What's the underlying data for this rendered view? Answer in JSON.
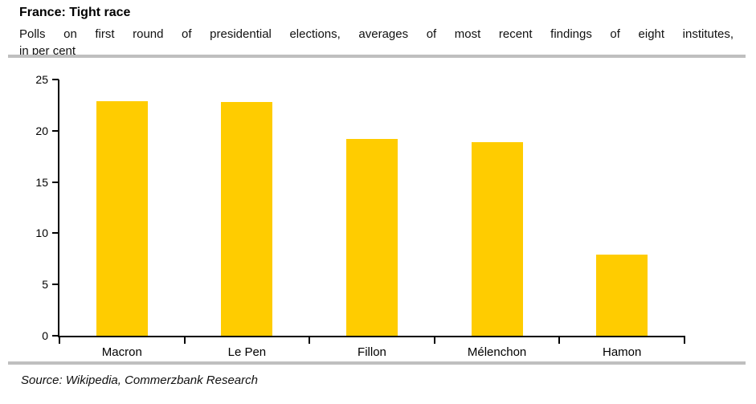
{
  "header": {
    "title": "France: Tight race",
    "subtitle_line1": "Polls on first round of presidential elections, averages of most recent findings of eight institutes,",
    "subtitle_line2": "in per cent"
  },
  "source_text": "Source: Wikipedia, Commerzbank Research",
  "colors": {
    "bar": "#ffcc00",
    "axis": "#000000",
    "rule": "#bfbfbf"
  },
  "chart_data": {
    "type": "bar",
    "categories": [
      "Macron",
      "Le Pen",
      "Fillon",
      "Mélenchon",
      "Hamon"
    ],
    "values": [
      22.9,
      22.8,
      19.2,
      18.9,
      7.9
    ],
    "title": "France: Tight race",
    "subtitle": "Polls on first round of presidential elections, averages of most recent findings of eight institutes, in per cent",
    "xlabel": "",
    "ylabel": "",
    "ylim": [
      0,
      25
    ],
    "yticks": [
      0,
      5,
      10,
      15,
      20,
      25
    ],
    "grid": false,
    "legend": "none",
    "bar_color": "#ffcc00"
  }
}
